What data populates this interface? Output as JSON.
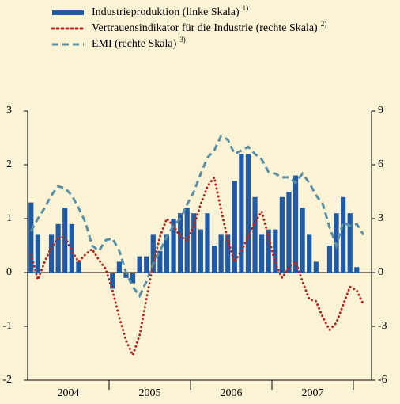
{
  "chart_data": {
    "type": "bar-line",
    "categories": [
      null,
      null,
      null,
      null,
      null,
      null,
      null,
      null,
      null,
      null,
      null,
      null,
      null,
      null,
      null,
      null,
      null,
      null,
      null,
      null,
      null,
      null,
      null,
      null,
      null,
      null,
      null,
      null,
      null,
      null,
      null,
      null,
      null,
      null,
      null,
      null,
      null,
      null,
      null,
      null,
      null,
      null,
      null,
      null,
      null,
      null,
      null,
      null,
      null,
      null
    ],
    "x_group_labels": [
      "2004",
      "2005",
      "2006",
      "2007"
    ],
    "series": [
      {
        "name": "Industrieproduktion (linke Skala)",
        "footnote": "1)",
        "type": "bar",
        "color": "#1f5aa6",
        "axis": "y",
        "values": [
          1.3,
          0.7,
          0,
          0.7,
          0.9,
          1.2,
          0.9,
          0.2,
          0,
          0,
          0,
          0,
          -0.3,
          0.2,
          -0.1,
          -0.2,
          0.3,
          0.3,
          0.7,
          0.4,
          0.7,
          1.0,
          1.1,
          1.2,
          1.1,
          0.8,
          1.1,
          0.5,
          0.7,
          0.7,
          1.7,
          2.2,
          2.2,
          1.4,
          0.7,
          0.8,
          0.8,
          1.4,
          1.5,
          1.8,
          1.2,
          0.7,
          0.2,
          0,
          0.5,
          1.1,
          1.4,
          1.1,
          0.1,
          null
        ]
      },
      {
        "name": "Vertrauensindikator für die Industrie (rechte Skala)",
        "footnote": "2)",
        "type": "line",
        "style": "dotted",
        "color": "#b5271f",
        "axis": "y2",
        "values": [
          1.0,
          -0.4,
          0.6,
          1.4,
          1.9,
          2.0,
          1.2,
          0.6,
          1.0,
          1.3,
          0.7,
          0.2,
          -1.0,
          -2.5,
          -3.8,
          -4.6,
          -3.5,
          -1.5,
          0.5,
          2.0,
          3.0,
          2.6,
          2.0,
          1.8,
          2.6,
          3.8,
          4.8,
          5.3,
          3.5,
          1.8,
          0.6,
          1.2,
          2.0,
          2.8,
          3.4,
          2.0,
          0.5,
          -0.3,
          0.3,
          0.6,
          -0.5,
          -1.5,
          -1.6,
          -2.5,
          -3.2,
          -2.8,
          -1.8,
          -0.8,
          -1.0,
          -1.8
        ]
      },
      {
        "name": "EMI (rechte Skala)",
        "footnote": "3)",
        "type": "line",
        "style": "dashed",
        "color": "#5b8fa3",
        "axis": "y2",
        "values": [
          2.3,
          3.0,
          3.6,
          4.3,
          4.8,
          4.7,
          4.3,
          3.6,
          2.8,
          1.5,
          1.2,
          1.8,
          1.9,
          1.2,
          0.0,
          -0.8,
          -1.3,
          -0.5,
          0.5,
          1.2,
          2.0,
          2.6,
          3.0,
          3.8,
          4.5,
          5.5,
          6.4,
          6.8,
          7.6,
          7.4,
          6.6,
          6.8,
          7.0,
          6.6,
          6.3,
          5.6,
          5.5,
          5.3,
          5.3,
          5.0,
          5.5,
          5.0,
          4.3,
          3.8,
          2.5,
          1.5,
          2.8,
          2.6,
          2.7,
          2.1
        ]
      }
    ],
    "ylim": [
      -2,
      3
    ],
    "yticks": [
      -2,
      -1,
      0,
      1,
      2,
      3
    ],
    "y2lim": [
      -6,
      9
    ],
    "y2ticks": [
      -6,
      -3,
      0,
      3,
      6,
      9
    ],
    "grid": false,
    "legend": "top"
  }
}
